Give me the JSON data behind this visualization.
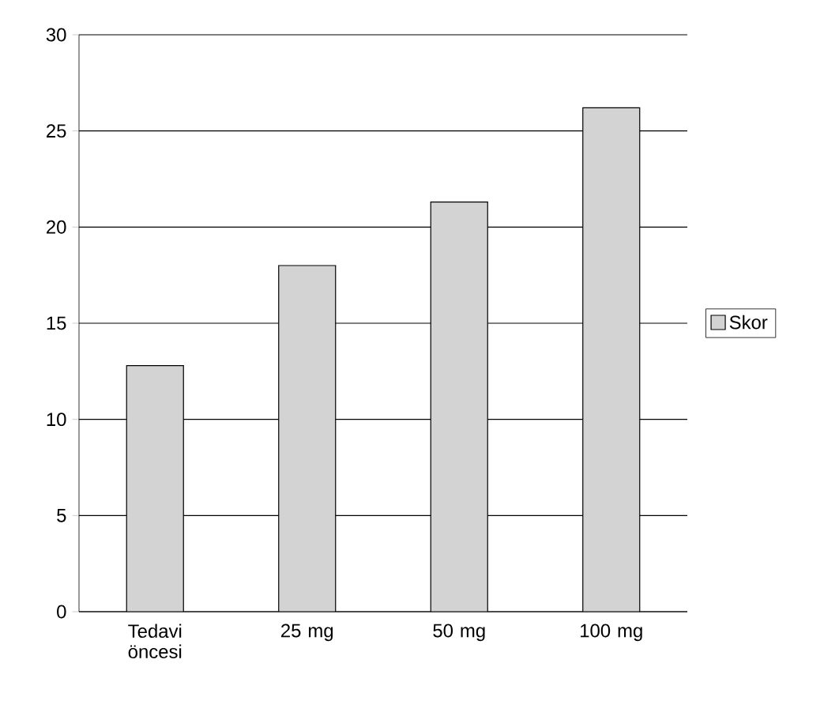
{
  "chart_data": {
    "type": "bar",
    "categories": [
      "Tedavi öncesi",
      "25 mg",
      "50 mg",
      "100 mg"
    ],
    "series": [
      {
        "name": "Skor",
        "color": "#d3d3d3",
        "values": [
          12.8,
          18,
          21.3,
          26.2
        ]
      }
    ],
    "ylim": [
      0,
      30
    ],
    "yticks": [
      0,
      5,
      10,
      15,
      20,
      25,
      30
    ],
    "grid": "y",
    "legend": "right"
  }
}
